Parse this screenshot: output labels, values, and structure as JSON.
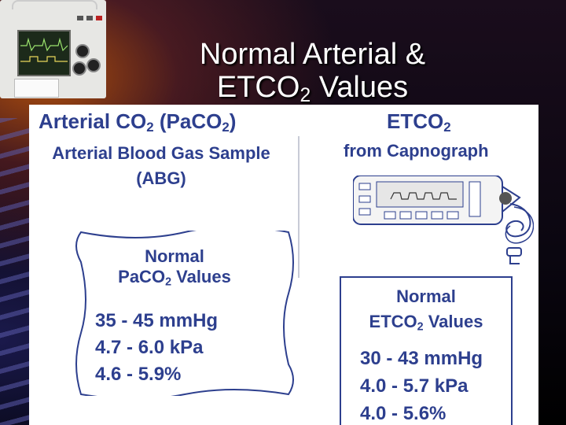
{
  "slide": {
    "title_line1": "Normal Arterial &",
    "title_line2_prefix": "ETCO",
    "title_line2_sub": "2",
    "title_line2_suffix": " Values"
  },
  "left": {
    "heading_a": "Arterial CO",
    "heading_sub1": "2",
    "heading_b": " (PaCO",
    "heading_sub2": "2",
    "heading_c": ")",
    "subtitle_line1": "Arterial Blood Gas Sample",
    "subtitle_line2": "(ABG)",
    "box_title_line1": "Normal",
    "box_title_line2_a": "PaCO",
    "box_title_line2_sub": "2",
    "box_title_line2_b": " Values",
    "values": [
      "35 - 45 mmHg",
      "4.7 - 6.0 kPa",
      "4.6 - 5.9%"
    ]
  },
  "right": {
    "heading_a": "ETCO",
    "heading_sub": "2",
    "subtitle": "from Capnograph",
    "box_title_line1": "Normal",
    "box_title_line2_a": "ETCO",
    "box_title_line2_sub": "2",
    "box_title_line2_b": " Values",
    "values": [
      "30 - 43 mmHg",
      "4.0 - 5.7 kPa",
      "4.0 - 5.6%"
    ]
  },
  "colors": {
    "accent_blue": "#2d3f8e",
    "background": "#0a0610"
  }
}
